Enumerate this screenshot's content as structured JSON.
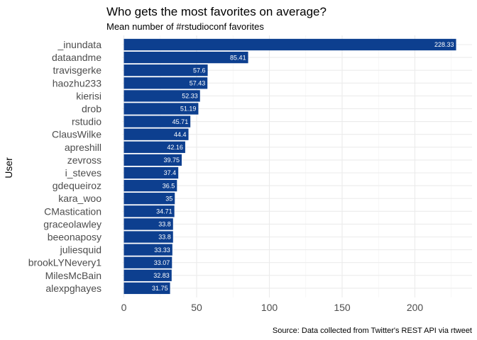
{
  "chart_data": {
    "type": "bar",
    "orientation": "horizontal",
    "title": "Who gets the most favorites on average?",
    "subtitle": "Mean number of #rstudioconf favorites",
    "caption": "Source: Data collected from Twitter's REST API via rtweet",
    "xlabel": "",
    "ylabel": "User",
    "xlim": [
      0,
      230
    ],
    "x_ticks": [
      0,
      50,
      100,
      150,
      200
    ],
    "grid": true,
    "bar_color": "#0d3f8f",
    "value_label_color": "#ffffff",
    "categories": [
      "_inundata",
      "dataandme",
      "travisgerke",
      "haozhu233",
      "kierisi",
      "drob",
      "rstudio",
      "ClausWilke",
      "apreshill",
      "zevross",
      "i_steves",
      "gdequeiroz",
      "kara_woo",
      "CMastication",
      "graceolawley",
      "beeonaposy",
      "juliesquid",
      "brookLYNevery1",
      "MilesMcBain",
      "alexpghayes"
    ],
    "values": [
      228.33,
      85.41,
      57.6,
      57.43,
      52.33,
      51.19,
      45.71,
      44.4,
      42.16,
      39.75,
      37.4,
      36.5,
      35,
      34.71,
      33.8,
      33.8,
      33.33,
      33.07,
      32.83,
      31.75
    ],
    "value_labels": [
      "228.33",
      "85.41",
      "57.6",
      "57.43",
      "52.33",
      "51.19",
      "45.71",
      "44.4",
      "42.16",
      "39.75",
      "37.4",
      "36.5",
      "35",
      "34.71",
      "33.8",
      "33.8",
      "33.33",
      "33.07",
      "32.83",
      "31.75"
    ]
  }
}
